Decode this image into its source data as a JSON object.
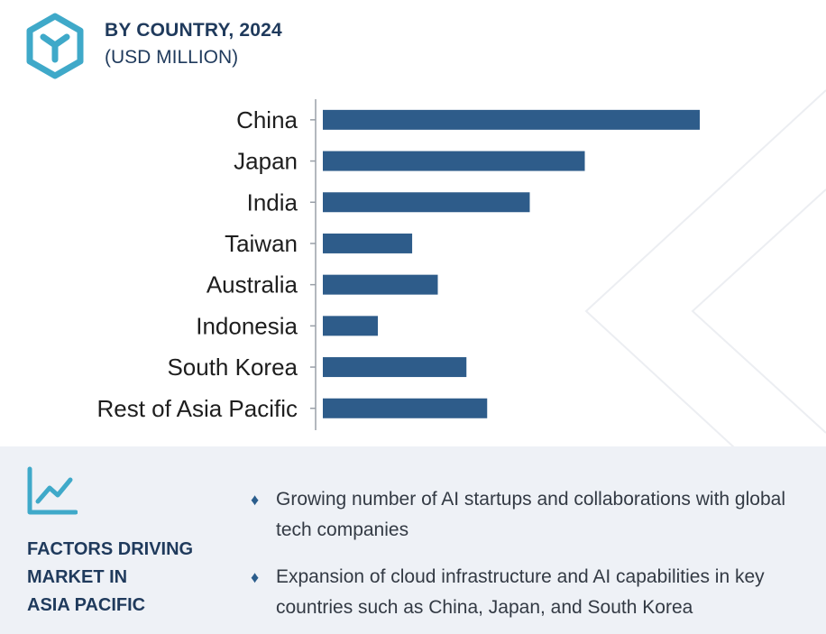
{
  "header": {
    "title": "BY COUNTRY, 2024",
    "subtitle": "(USD MILLION)"
  },
  "colors": {
    "bar": "#2e5c8a",
    "accent": "#3fa9c9",
    "title": "#1f3a5c",
    "panel_bg": "#eef1f6"
  },
  "icons": {
    "logo": "hexagon-logo-icon",
    "trend": "trend-line-icon",
    "bullet": "diamond-bullet-icon"
  },
  "chart_data": {
    "type": "bar",
    "orientation": "horizontal",
    "categories": [
      "China",
      "Japan",
      "India",
      "Taiwan",
      "Australia",
      "Indonesia",
      "South Korea",
      "Rest of Asia Pacific"
    ],
    "values": [
      100,
      69.5,
      54.9,
      23.7,
      30.5,
      14.6,
      38.1,
      43.6
    ],
    "xlim": [
      0,
      100
    ],
    "grid": false,
    "legend": "none"
  },
  "factors": {
    "title_lines": [
      "FACTORS DRIVING",
      "MARKET IN",
      "ASIA PACIFIC"
    ],
    "items": [
      {
        "bullet": "♦",
        "text": "Growing number of AI startups and collaborations with global tech companies"
      },
      {
        "bullet": "♦",
        "text": "Expansion of cloud infrastructure and AI capabilities in key countries such as China, Japan, and South Korea"
      }
    ]
  }
}
